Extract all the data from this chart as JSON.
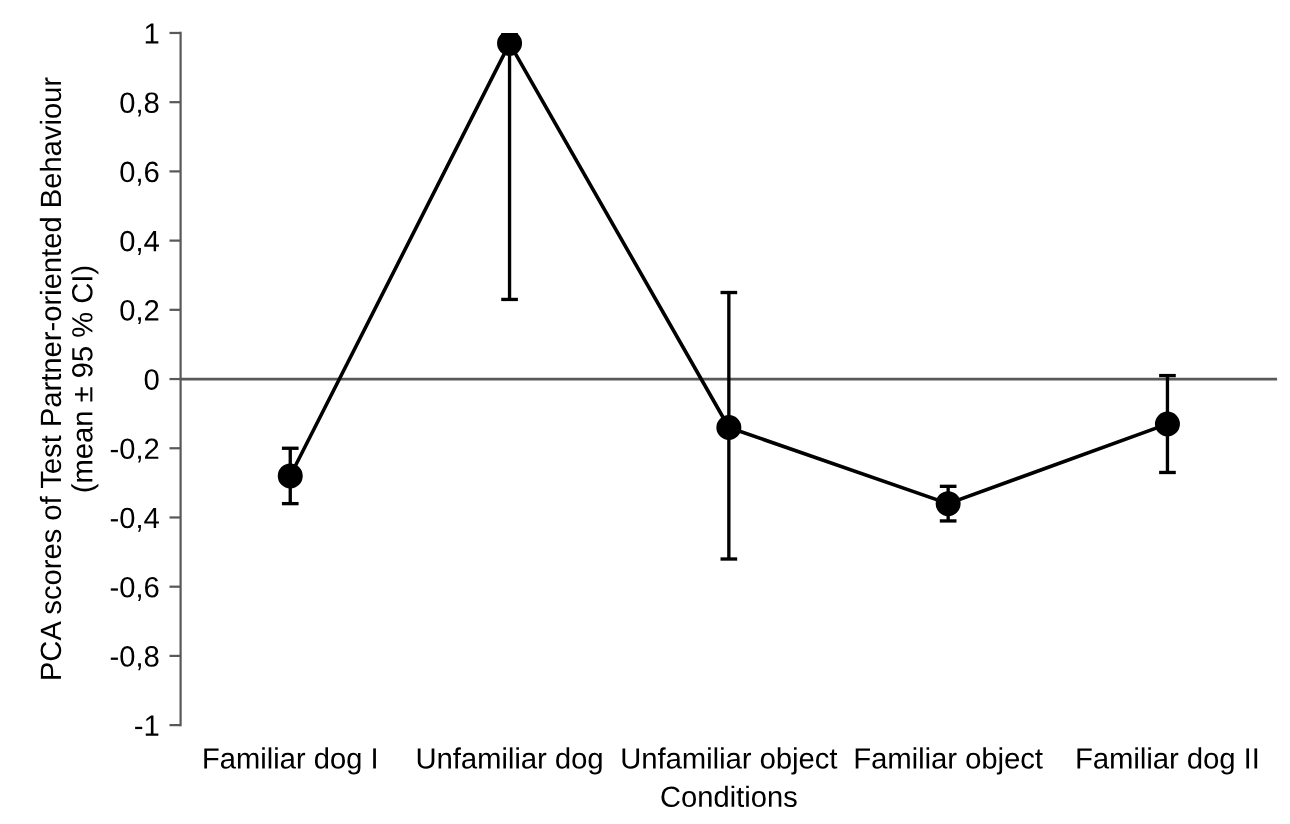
{
  "chart_data": {
    "type": "line",
    "xlabel": "Conditions",
    "ylabel": "PCA scores of Test Partner-oriented Behaviour\n(mean ± 95 % CI)",
    "categories": [
      "Familiar dog I",
      "Unfamiliar dog",
      "Unfamiliar object",
      "Familiar object",
      "Familiar dog II"
    ],
    "series": [
      {
        "color": "#000000",
        "values": [
          -0.28,
          0.97,
          -0.14,
          -0.36,
          -0.13
        ],
        "errors": [
          [
            -0.36,
            -0.2
          ],
          [
            0.23,
            1.0
          ],
          [
            -0.52,
            0.25
          ],
          [
            -0.41,
            -0.31
          ],
          [
            -0.27,
            0.01
          ]
        ]
      }
    ],
    "ylim": [
      -1,
      1
    ],
    "yticks": [
      {
        "value": -1,
        "label": "-1"
      },
      {
        "value": -0.8,
        "label": "-0,8"
      },
      {
        "value": -0.6,
        "label": "-0,6"
      },
      {
        "value": -0.4,
        "label": "-0,4"
      },
      {
        "value": -0.2,
        "label": "-0,2"
      },
      {
        "value": 0,
        "label": "0"
      },
      {
        "value": 0.2,
        "label": "0,2"
      },
      {
        "value": 0.4,
        "label": "0,4"
      },
      {
        "value": 0.6,
        "label": "0,6"
      },
      {
        "value": 0.8,
        "label": "0,8"
      },
      {
        "value": 1,
        "label": "1"
      }
    ],
    "ref_lines": [
      {
        "axis": "y",
        "value": 0,
        "color": "#595959"
      }
    ],
    "marker": "circle",
    "line_style": "solid",
    "grid": false,
    "legend": false
  }
}
